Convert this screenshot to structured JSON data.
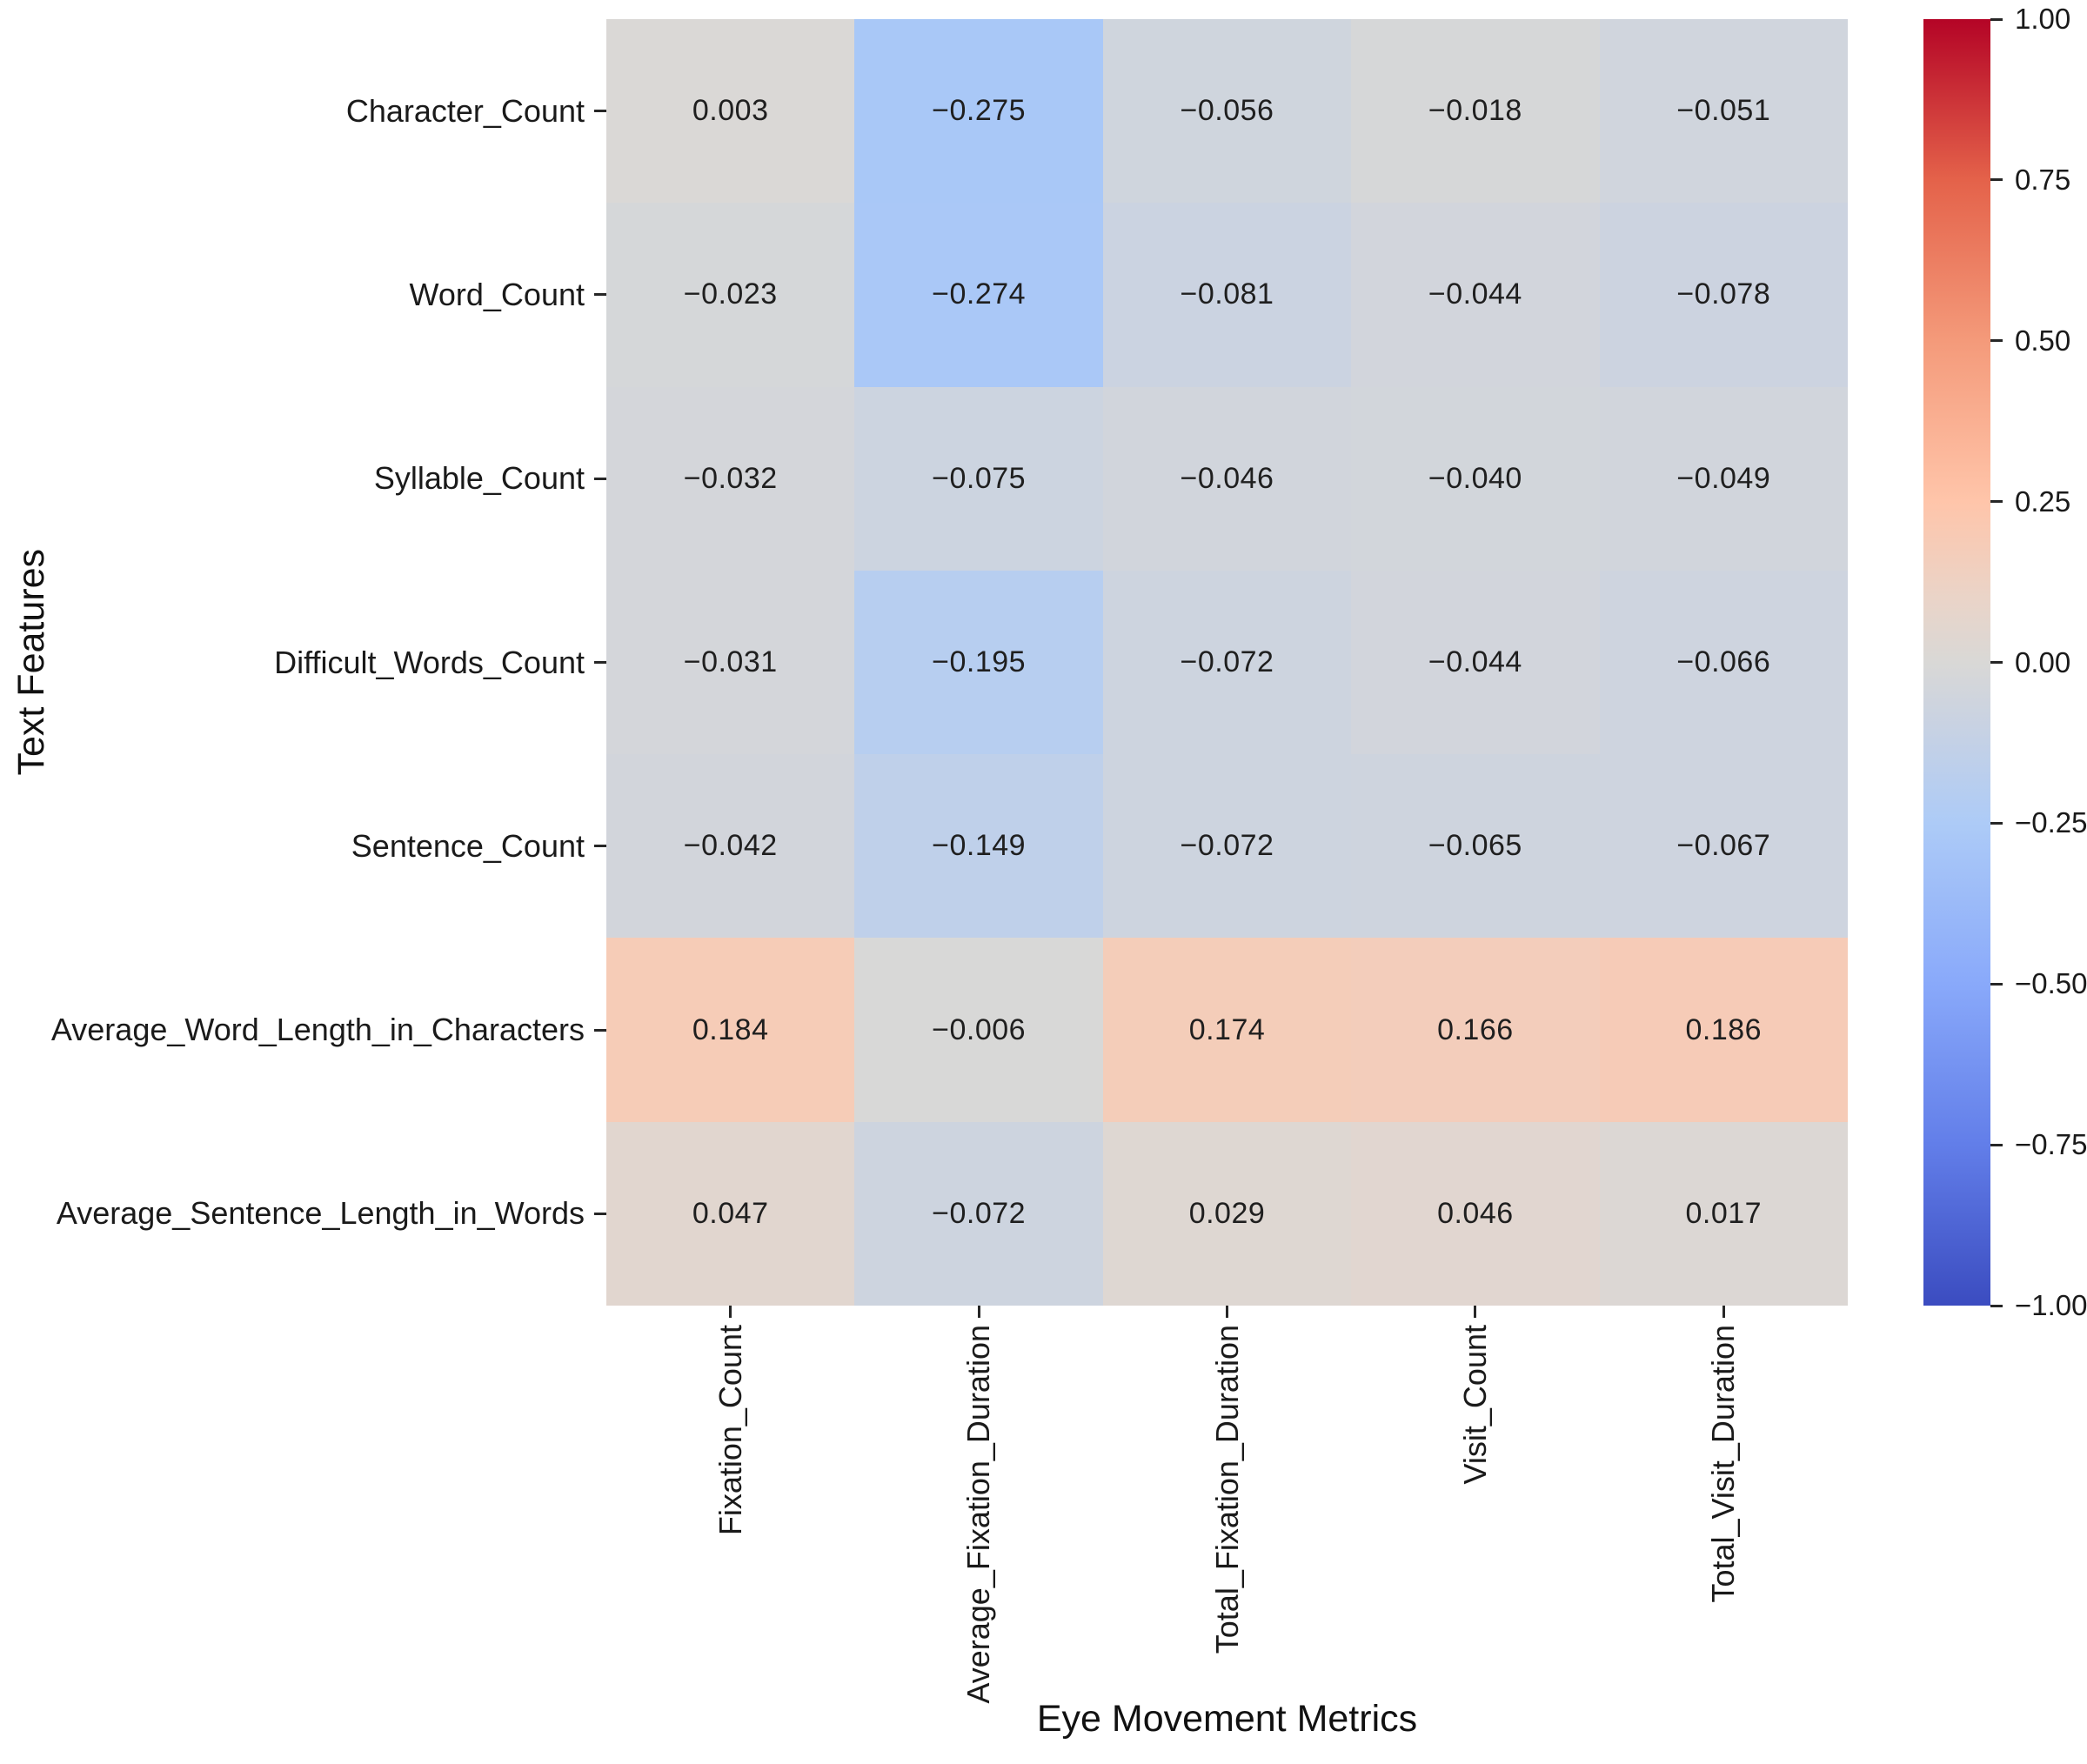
{
  "figure": {
    "background": "#ffffff",
    "text_color": "#1a1a1a"
  },
  "chart_data": {
    "type": "heatmap",
    "title": "",
    "xlabel": "Eye Movement Metrics",
    "ylabel": "Text Features",
    "x_categories": [
      "Fixation_Count",
      "Average_Fixation_Duration",
      "Total_Fixation_Duration",
      "Visit_Count",
      "Total_Visit_Duration"
    ],
    "y_categories": [
      "Character_Count",
      "Word_Count",
      "Syllable_Count",
      "Difficult_Words_Count",
      "Sentence_Count",
      "Average_Word_Length_in_Characters",
      "Average_Sentence_Length_in_Words"
    ],
    "values": [
      [
        0.003,
        -0.275,
        -0.056,
        -0.018,
        -0.051
      ],
      [
        -0.023,
        -0.274,
        -0.081,
        -0.044,
        -0.078
      ],
      [
        -0.032,
        -0.075,
        -0.046,
        -0.04,
        -0.049
      ],
      [
        -0.031,
        -0.195,
        -0.072,
        -0.044,
        -0.066
      ],
      [
        -0.042,
        -0.149,
        -0.072,
        -0.065,
        -0.067
      ],
      [
        0.184,
        -0.006,
        0.174,
        0.166,
        0.186
      ],
      [
        0.047,
        -0.072,
        0.029,
        0.046,
        0.017
      ]
    ],
    "annotation_decimals": 3,
    "grid": false,
    "legend_position": "right",
    "colorbar": {
      "vmin": -1.0,
      "vmax": 1.0,
      "ticks": [
        1.0,
        0.75,
        0.5,
        0.25,
        0.0,
        -0.25,
        -0.5,
        -0.75,
        -1.0
      ],
      "tick_decimals": 2
    },
    "colormap": {
      "name": "coolwarm",
      "anchors": [
        [
          -1.0,
          [
            59,
            76,
            192
          ]
        ],
        [
          -0.75,
          [
            98,
            126,
            233
          ]
        ],
        [
          -0.5,
          [
            137,
            169,
            250
          ]
        ],
        [
          -0.25,
          [
            173,
            203,
            247
          ]
        ],
        [
          -0.1,
          [
            200,
            210,
            227
          ]
        ],
        [
          0.0,
          [
            217,
            216,
            214
          ]
        ],
        [
          0.1,
          [
            234,
            212,
            200
          ]
        ],
        [
          0.25,
          [
            255,
            197,
            170
          ]
        ],
        [
          0.5,
          [
            244,
            154,
            122
          ]
        ],
        [
          0.75,
          [
            228,
            98,
            74
          ]
        ],
        [
          1.0,
          [
            180,
            4,
            38
          ]
        ]
      ]
    }
  }
}
